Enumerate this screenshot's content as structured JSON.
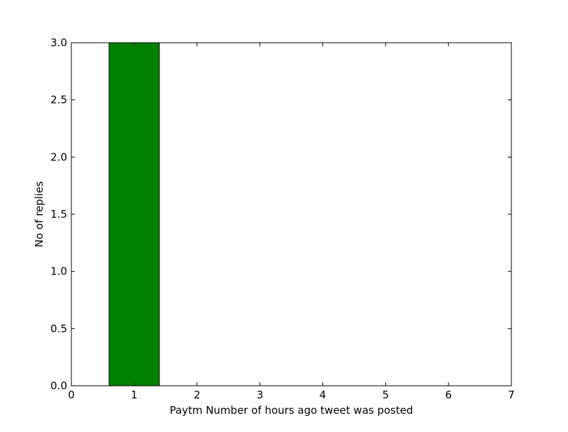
{
  "chart_data": {
    "type": "bar",
    "title": "",
    "xlabel": "Paytm Number of hours ago tweet was posted",
    "ylabel": "No of replies",
    "xlim": [
      0,
      7
    ],
    "ylim": [
      0,
      3.0
    ],
    "x_ticks": [
      0,
      1,
      2,
      3,
      4,
      5,
      6,
      7
    ],
    "x_tick_labels": [
      "0",
      "1",
      "2",
      "3",
      "4",
      "5",
      "6",
      "7"
    ],
    "y_ticks": [
      0.0,
      0.5,
      1.0,
      1.5,
      2.0,
      2.5,
      3.0
    ],
    "y_tick_labels": [
      "0.0",
      "0.5",
      "1.0",
      "1.5",
      "2.0",
      "2.5",
      "3.0"
    ],
    "bar_width": 0.8,
    "x": [
      1,
      2,
      3,
      4,
      5,
      6
    ],
    "values": [
      3,
      0,
      0,
      0,
      0,
      0
    ],
    "grid": false,
    "bar_color": "#008000",
    "edge_color": "#000000"
  }
}
